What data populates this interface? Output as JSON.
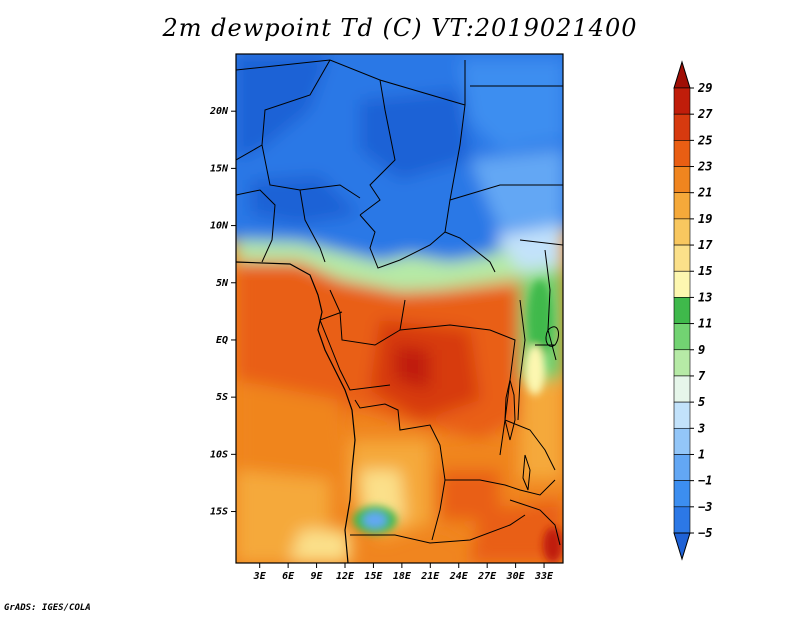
{
  "chart_data": {
    "type": "heatmap",
    "title": "2m dewpoint Td (C) VT:2019021400",
    "credit": "GrADS: IGES/COLA",
    "x_ticks": [
      "3E",
      "6E",
      "9E",
      "12E",
      "15E",
      "18E",
      "21E",
      "24E",
      "27E",
      "30E",
      "33E"
    ],
    "x_tick_values": [
      3,
      6,
      9,
      12,
      15,
      18,
      21,
      24,
      27,
      30,
      33
    ],
    "y_ticks": [
      "20N",
      "15N",
      "10N",
      "5N",
      "EQ",
      "5S",
      "10S",
      "15S"
    ],
    "y_tick_values": [
      20,
      15,
      10,
      5,
      0,
      -5,
      -10,
      -15
    ],
    "xlim": [
      0.5,
      35
    ],
    "ylim": [
      -19.5,
      25
    ],
    "colorbar": {
      "labels": [
        "29",
        "27",
        "25",
        "23",
        "21",
        "19",
        "17",
        "15",
        "13",
        "11",
        "9",
        "7",
        "5",
        "3",
        "1",
        "−1",
        "−3",
        "−5"
      ],
      "levels": [
        -5,
        -3,
        -1,
        1,
        3,
        5,
        7,
        9,
        11,
        13,
        15,
        17,
        19,
        21,
        23,
        25,
        27,
        29
      ],
      "colors": [
        "#1f62d6",
        "#2c78e6",
        "#3c8ef0",
        "#63a7f4",
        "#93c6f8",
        "#c2e2fb",
        "#e6f6ea",
        "#b6eaa6",
        "#72d372",
        "#3fb94b",
        "#fdf7b0",
        "#fbe08a",
        "#f8c75f",
        "#f5a93a",
        "#f0851f",
        "#e95e13",
        "#d73a0f",
        "#c01d0a",
        "#a00e05"
      ]
    }
  }
}
